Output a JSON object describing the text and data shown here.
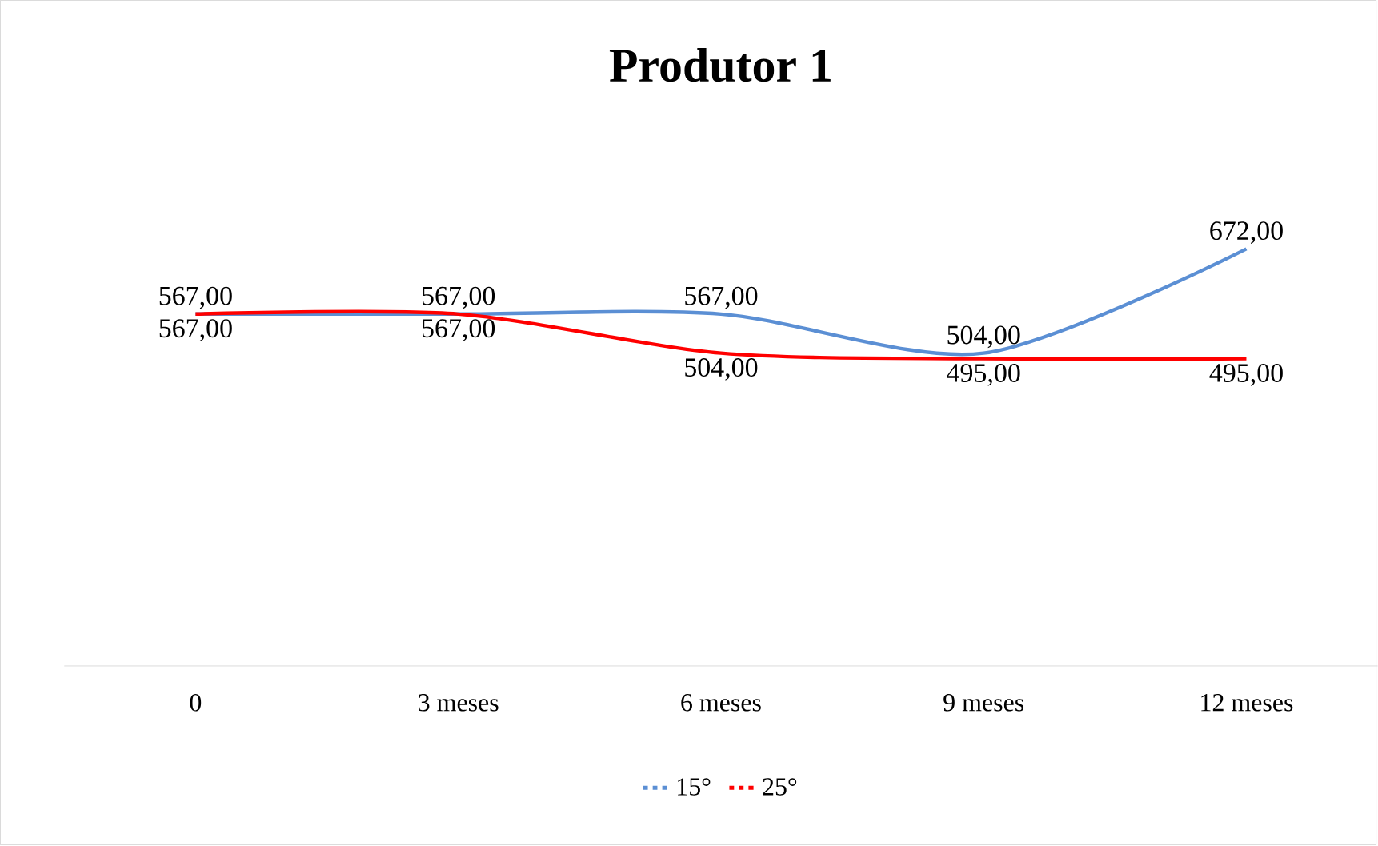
{
  "chart_data": {
    "type": "line",
    "title": "Produtor 1",
    "categories": [
      "0",
      "3 meses",
      "6 meses",
      "9 meses",
      "12 meses"
    ],
    "series": [
      {
        "name": "15°",
        "color": "#5b8fd4",
        "values": [
          567,
          567,
          567,
          504,
          672
        ],
        "value_labels": [
          "567,00",
          "567,00",
          "567,00",
          "504,00",
          "672,00"
        ]
      },
      {
        "name": "25°",
        "color": "#ff0000",
        "values": [
          567,
          567,
          504,
          495,
          495
        ],
        "value_labels": [
          "567,00",
          "567,00",
          "504,00",
          "495,00",
          "495,00"
        ]
      }
    ],
    "legend": "bottom",
    "marker": "none",
    "line_style": "solid"
  }
}
